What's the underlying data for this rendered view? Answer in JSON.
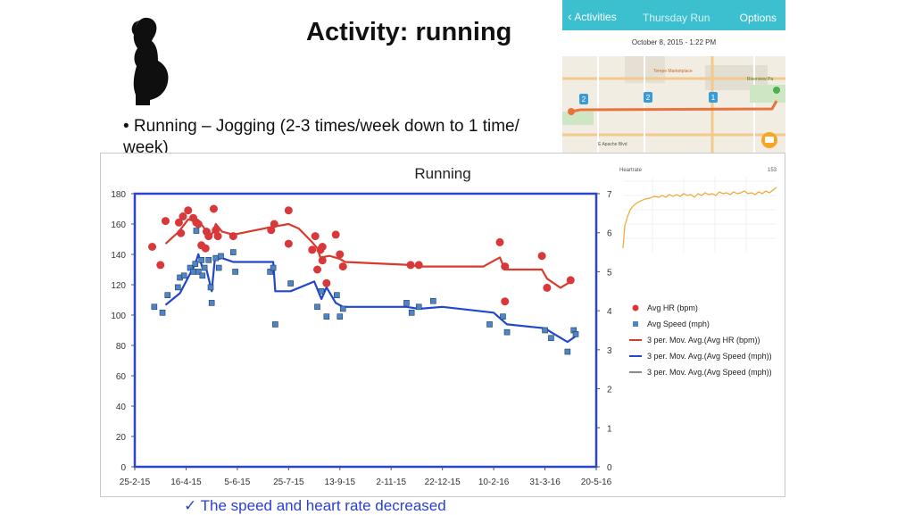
{
  "slide": {
    "title": "Activity: running",
    "bullet": "• Running – Jogging (2-3 times/week down to 1 time/ week)",
    "footer": "✓ The speed and heart rate decreased"
  },
  "phone": {
    "back_label": "Activities",
    "title": "Thursday Run",
    "options_label": "Options",
    "date": "October 8, 2015 - 1:22 PM",
    "accent": "#3cbfcf",
    "map_markers": [
      "2",
      "2",
      "1"
    ],
    "map_labels": [
      "Tempe Marketplace",
      "Riverview Pa",
      "E Apache Blvd"
    ],
    "route_color": "#e8743b"
  },
  "heartrate_panel": {
    "label": "Heartrate",
    "max_label": "153",
    "color": "#f0a732"
  },
  "chart_data": {
    "type": "scatter",
    "title": "Running",
    "x_tick_labels": [
      "25-2-15",
      "16-4-15",
      "5-6-15",
      "25-7-15",
      "13-9-15",
      "2-11-15",
      "22-12-15",
      "10-2-16",
      "31-3-16",
      "20-5-16"
    ],
    "x_start_label": "25-2-15",
    "x_range_days": [
      0,
      450
    ],
    "x_tick_step_days": 50,
    "y_left": {
      "ylim": [
        0,
        180
      ],
      "ticks": [
        0,
        20,
        40,
        60,
        80,
        100,
        120,
        140,
        160,
        180
      ]
    },
    "y_right": {
      "ylim": [
        0,
        7
      ],
      "ticks": [
        0,
        1,
        2,
        3,
        4,
        5,
        6,
        7
      ]
    },
    "series": [
      {
        "name": "Avg HR (bpm)",
        "kind": "scatter",
        "axis": "left",
        "color": "#d9383a",
        "points": [
          [
            17,
            145
          ],
          [
            25,
            133
          ],
          [
            30,
            162
          ],
          [
            43,
            161
          ],
          [
            47,
            165
          ],
          [
            52,
            169
          ],
          [
            45,
            154
          ],
          [
            57,
            164
          ],
          [
            60,
            161
          ],
          [
            62,
            160
          ],
          [
            65,
            146
          ],
          [
            69,
            144
          ],
          [
            70,
            155
          ],
          [
            72,
            152
          ],
          [
            77,
            170
          ],
          [
            79,
            156
          ],
          [
            81,
            152
          ],
          [
            96,
            152
          ],
          [
            133,
            156
          ],
          [
            136,
            160
          ],
          [
            150,
            169
          ],
          [
            150,
            147
          ],
          [
            173,
            143
          ],
          [
            176,
            152
          ],
          [
            178,
            130
          ],
          [
            181,
            143
          ],
          [
            183,
            136
          ],
          [
            183,
            145
          ],
          [
            187,
            121
          ],
          [
            196,
            153
          ],
          [
            200,
            140
          ],
          [
            203,
            132
          ],
          [
            269,
            133
          ],
          [
            277,
            133
          ],
          [
            356,
            148
          ],
          [
            361,
            132
          ],
          [
            361,
            109
          ],
          [
            397,
            139
          ],
          [
            402,
            118
          ],
          [
            425,
            123
          ]
        ]
      },
      {
        "name": "Avg Speed (mph)",
        "kind": "scatter",
        "axis": "right",
        "color": "#4f85c2",
        "points": [
          [
            19,
            4.1
          ],
          [
            27,
            3.95
          ],
          [
            32,
            4.4
          ],
          [
            42,
            4.6
          ],
          [
            44,
            4.85
          ],
          [
            48,
            4.9
          ],
          [
            54,
            5.1
          ],
          [
            57,
            5.0
          ],
          [
            59,
            5.2
          ],
          [
            60,
            6.05
          ],
          [
            62,
            5.0
          ],
          [
            65,
            5.3
          ],
          [
            66,
            4.9
          ],
          [
            68,
            5.1
          ],
          [
            72,
            5.3
          ],
          [
            74,
            4.6
          ],
          [
            75,
            4.2
          ],
          [
            79,
            5.35
          ],
          [
            82,
            5.1
          ],
          [
            84,
            5.4
          ],
          [
            96,
            5.5
          ],
          [
            98,
            5.0
          ],
          [
            132,
            5.0
          ],
          [
            135,
            5.1
          ],
          [
            137,
            3.65
          ],
          [
            152,
            4.7
          ],
          [
            178,
            4.1
          ],
          [
            182,
            4.5
          ],
          [
            187,
            3.85
          ],
          [
            197,
            4.4
          ],
          [
            200,
            3.85
          ],
          [
            203,
            4.05
          ],
          [
            265,
            4.2
          ],
          [
            270,
            3.95
          ],
          [
            277,
            4.1
          ],
          [
            291,
            4.25
          ],
          [
            346,
            3.65
          ],
          [
            359,
            3.85
          ],
          [
            363,
            3.45
          ],
          [
            400,
            3.5
          ],
          [
            406,
            3.3
          ],
          [
            422,
            2.95
          ],
          [
            428,
            3.5
          ],
          [
            430,
            3.4
          ]
        ]
      },
      {
        "name": "3 per. Mov. Avg.(Avg HR (bpm))",
        "kind": "line",
        "axis": "left",
        "color": "#d93a2b",
        "points": [
          [
            30,
            147
          ],
          [
            43,
            155
          ],
          [
            52,
            163
          ],
          [
            60,
            162
          ],
          [
            66,
            159
          ],
          [
            70,
            155
          ],
          [
            75,
            153
          ],
          [
            79,
            160
          ],
          [
            85,
            155
          ],
          [
            96,
            153
          ],
          [
            133,
            158
          ],
          [
            150,
            160
          ],
          [
            160,
            157
          ],
          [
            173,
            148
          ],
          [
            178,
            144
          ],
          [
            181,
            138
          ],
          [
            190,
            139
          ],
          [
            200,
            137
          ],
          [
            205,
            135
          ],
          [
            269,
            133
          ],
          [
            277,
            132
          ],
          [
            340,
            132
          ],
          [
            356,
            138
          ],
          [
            361,
            130
          ],
          [
            397,
            130
          ],
          [
            402,
            124
          ],
          [
            415,
            118
          ],
          [
            425,
            122
          ]
        ]
      },
      {
        "name": "3 per. Mov. Avg.(Avg Speed (mph))",
        "kind": "line",
        "axis": "right",
        "color": "#2146d0",
        "points": [
          [
            30,
            4.15
          ],
          [
            44,
            4.45
          ],
          [
            52,
            4.85
          ],
          [
            59,
            5.2
          ],
          [
            62,
            5.45
          ],
          [
            66,
            5.1
          ],
          [
            70,
            5.05
          ],
          [
            75,
            4.5
          ],
          [
            78,
            5.3
          ],
          [
            85,
            5.35
          ],
          [
            96,
            5.25
          ],
          [
            135,
            5.25
          ],
          [
            137,
            4.5
          ],
          [
            152,
            4.5
          ],
          [
            175,
            4.75
          ],
          [
            182,
            4.3
          ],
          [
            187,
            4.6
          ],
          [
            196,
            4.2
          ],
          [
            203,
            4.1
          ],
          [
            265,
            4.1
          ],
          [
            277,
            4.05
          ],
          [
            300,
            4.1
          ],
          [
            350,
            3.95
          ],
          [
            363,
            3.65
          ],
          [
            400,
            3.55
          ],
          [
            406,
            3.45
          ],
          [
            422,
            3.2
          ],
          [
            430,
            3.35
          ]
        ]
      },
      {
        "name": "3 per. Mov. Avg.(Avg Speed (mph))",
        "kind": "legend-only",
        "axis": "right",
        "color": "#111111",
        "points": []
      }
    ],
    "grid": false,
    "legend_position": "right"
  }
}
